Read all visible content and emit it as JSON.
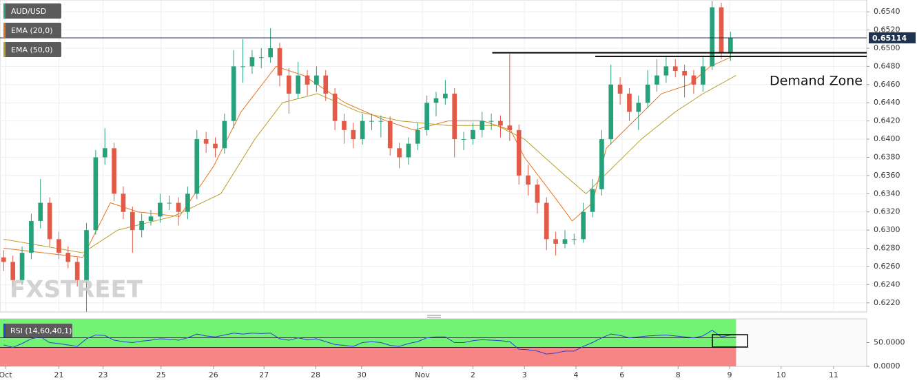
{
  "chart_data": [
    {
      "type": "candlestick",
      "title": "AUD/USD",
      "watermark": "FXSTREET",
      "up_color": "#26a17b",
      "down_color": "#e35a48",
      "xlim": [
        -0.4,
        93.8
      ],
      "ylim": [
        0.621,
        0.6553
      ],
      "grid": true,
      "yticks": [
        {
          "value": 0.622,
          "label": "0.6220"
        },
        {
          "value": 0.624,
          "label": "0.6240"
        },
        {
          "value": 0.626,
          "label": "0.6260"
        },
        {
          "value": 0.628,
          "label": "0.6280"
        },
        {
          "value": 0.63,
          "label": "0.6300"
        },
        {
          "value": 0.632,
          "label": "0.6320"
        },
        {
          "value": 0.634,
          "label": "0.6340"
        },
        {
          "value": 0.636,
          "label": "0.6360"
        },
        {
          "value": 0.638,
          "label": "0.6380"
        },
        {
          "value": 0.64,
          "label": "0.6400"
        },
        {
          "value": 0.642,
          "label": "0.6420"
        },
        {
          "value": 0.644,
          "label": "0.6440"
        },
        {
          "value": 0.646,
          "label": "0.6460"
        },
        {
          "value": 0.648,
          "label": "0.6480"
        },
        {
          "value": 0.65,
          "label": "0.6500"
        },
        {
          "value": 0.652,
          "label": "0.6520"
        },
        {
          "value": 0.654,
          "label": "0.6540"
        }
      ],
      "xticks": [
        {
          "value": 0.2,
          "label": "Oct"
        },
        {
          "value": 6,
          "label": "21"
        },
        {
          "value": 10.8,
          "label": "23"
        },
        {
          "value": 17.1,
          "label": "25"
        },
        {
          "value": 22.8,
          "label": "26"
        },
        {
          "value": 28.3,
          "label": "27"
        },
        {
          "value": 33.9,
          "label": "28"
        },
        {
          "value": 38.9,
          "label": "30"
        },
        {
          "value": 45.5,
          "label": "Nov"
        },
        {
          "value": 51,
          "label": "2"
        },
        {
          "value": 56.6,
          "label": "3"
        },
        {
          "value": 62.2,
          "label": "4"
        },
        {
          "value": 67.2,
          "label": "6"
        },
        {
          "value": 73.3,
          "label": "8"
        },
        {
          "value": 78.9,
          "label": "9"
        },
        {
          "value": 84.5,
          "label": "10"
        },
        {
          "value": 90.2,
          "label": "11"
        }
      ],
      "candles": [
        [
          0.627,
          0.6278,
          0.6255,
          0.6265
        ],
        [
          0.6265,
          0.6272,
          0.6238,
          0.6245
        ],
        [
          0.6245,
          0.6282,
          0.624,
          0.6275
        ],
        [
          0.6275,
          0.6318,
          0.6268,
          0.631
        ],
        [
          0.631,
          0.6356,
          0.6302,
          0.633
        ],
        [
          0.633,
          0.6336,
          0.6282,
          0.629
        ],
        [
          0.629,
          0.6298,
          0.6268,
          0.6275
        ],
        [
          0.6275,
          0.6282,
          0.6258,
          0.6265
        ],
        [
          0.6265,
          0.627,
          0.6238,
          0.6245
        ],
        [
          0.6245,
          0.6308,
          0.621,
          0.63
        ],
        [
          0.63,
          0.6388,
          0.6295,
          0.638
        ],
        [
          0.638,
          0.6412,
          0.6372,
          0.639
        ],
        [
          0.639,
          0.6396,
          0.6332,
          0.634
        ],
        [
          0.634,
          0.6348,
          0.6312,
          0.632
        ],
        [
          0.632,
          0.6326,
          0.6275,
          0.63
        ],
        [
          0.63,
          0.6318,
          0.6292,
          0.631
        ],
        [
          0.631,
          0.6322,
          0.6305,
          0.6315
        ],
        [
          0.6315,
          0.634,
          0.6308,
          0.633
        ],
        [
          0.633,
          0.6338,
          0.6322,
          0.633
        ],
        [
          0.633,
          0.6336,
          0.6305,
          0.632
        ],
        [
          0.632,
          0.6348,
          0.6312,
          0.634
        ],
        [
          0.634,
          0.641,
          0.6334,
          0.64
        ],
        [
          0.64,
          0.6408,
          0.6385,
          0.6395
        ],
        [
          0.6395,
          0.6402,
          0.638,
          0.639
        ],
        [
          0.639,
          0.6428,
          0.6384,
          0.642
        ],
        [
          0.642,
          0.6498,
          0.6412,
          0.648
        ],
        [
          0.648,
          0.651,
          0.6462,
          0.648
        ],
        [
          0.648,
          0.6498,
          0.6472,
          0.649
        ],
        [
          0.649,
          0.65,
          0.6478,
          0.649
        ],
        [
          0.649,
          0.6522,
          0.6484,
          0.65
        ],
        [
          0.65,
          0.6506,
          0.6458,
          0.647
        ],
        [
          0.647,
          0.6478,
          0.6428,
          0.645
        ],
        [
          0.645,
          0.6485,
          0.6444,
          0.647
        ],
        [
          0.647,
          0.6476,
          0.6448,
          0.646
        ],
        [
          0.646,
          0.648,
          0.6452,
          0.647
        ],
        [
          0.647,
          0.6476,
          0.6442,
          0.645
        ],
        [
          0.645,
          0.6456,
          0.641,
          0.642
        ],
        [
          0.642,
          0.6428,
          0.6395,
          0.641
        ],
        [
          0.641,
          0.6418,
          0.639,
          0.64
        ],
        [
          0.64,
          0.6428,
          0.6394,
          0.642
        ],
        [
          0.642,
          0.6428,
          0.641,
          0.642
        ],
        [
          0.642,
          0.6426,
          0.6402,
          0.642
        ],
        [
          0.642,
          0.6425,
          0.6382,
          0.639
        ],
        [
          0.639,
          0.6396,
          0.6368,
          0.638
        ],
        [
          0.638,
          0.6402,
          0.6372,
          0.6395
        ],
        [
          0.6395,
          0.6418,
          0.6388,
          0.641
        ],
        [
          0.641,
          0.6448,
          0.6404,
          0.644
        ],
        [
          0.644,
          0.6452,
          0.6425,
          0.6445
        ],
        [
          0.6445,
          0.6465,
          0.6438,
          0.645
        ],
        [
          0.645,
          0.6456,
          0.638,
          0.64
        ],
        [
          0.64,
          0.6408,
          0.6388,
          0.64
        ],
        [
          0.64,
          0.6418,
          0.6394,
          0.641
        ],
        [
          0.641,
          0.643,
          0.6402,
          0.642
        ],
        [
          0.642,
          0.6428,
          0.641,
          0.642
        ],
        [
          0.642,
          0.6426,
          0.6402,
          0.6415
        ],
        [
          0.6415,
          0.6494,
          0.6398,
          0.641
        ],
        [
          0.641,
          0.6416,
          0.635,
          0.636
        ],
        [
          0.636,
          0.6372,
          0.6338,
          0.635
        ],
        [
          0.635,
          0.6356,
          0.6318,
          0.633
        ],
        [
          0.633,
          0.6336,
          0.6278,
          0.629
        ],
        [
          0.629,
          0.6298,
          0.6272,
          0.6285
        ],
        [
          0.6285,
          0.63,
          0.628,
          0.629
        ],
        [
          0.629,
          0.6296,
          0.6284,
          0.629
        ],
        [
          0.629,
          0.633,
          0.6286,
          0.632
        ],
        [
          0.632,
          0.6356,
          0.6314,
          0.6345
        ],
        [
          0.6345,
          0.641,
          0.6338,
          0.64
        ],
        [
          0.64,
          0.6482,
          0.6394,
          0.646
        ],
        [
          0.646,
          0.6468,
          0.6438,
          0.645
        ],
        [
          0.645,
          0.6456,
          0.642,
          0.643
        ],
        [
          0.643,
          0.6448,
          0.641,
          0.644
        ],
        [
          0.644,
          0.6476,
          0.6434,
          0.646
        ],
        [
          0.646,
          0.6488,
          0.6452,
          0.647
        ],
        [
          0.647,
          0.649,
          0.6462,
          0.648
        ],
        [
          0.648,
          0.6488,
          0.6468,
          0.6475
        ],
        [
          0.6475,
          0.6482,
          0.6446,
          0.647
        ],
        [
          0.647,
          0.6476,
          0.645,
          0.646
        ],
        [
          0.646,
          0.649,
          0.6452,
          0.648
        ],
        [
          0.648,
          0.6552,
          0.6476,
          0.6545
        ],
        [
          0.6545,
          0.655,
          0.6488,
          0.6495
        ],
        [
          0.6495,
          0.6518,
          0.6486,
          0.6511
        ]
      ],
      "overlays": [
        {
          "name": "EMA (20,0)",
          "color": "#e8731e",
          "x": [
            0,
            8.6,
            11.6,
            14.6,
            19.1,
            22.8,
            25.8,
            29.6,
            32.6,
            37.1,
            41.6,
            44.6,
            48.3,
            52.1,
            55.1,
            56.6,
            59.6,
            61.8,
            64,
            65.5,
            68.5,
            71.5,
            74.5,
            76.8,
            79
          ],
          "values": [
            0.628,
            0.627,
            0.633,
            0.632,
            0.6315,
            0.637,
            0.643,
            0.648,
            0.647,
            0.644,
            0.642,
            0.641,
            0.642,
            0.642,
            0.641,
            0.638,
            0.634,
            0.631,
            0.633,
            0.639,
            0.642,
            0.645,
            0.646,
            0.648,
            0.649
          ]
        },
        {
          "name": "EMA (50,0)",
          "color": "#b8a02a",
          "x": [
            0,
            8.6,
            12.4,
            18.4,
            23.6,
            27.3,
            30.3,
            34.1,
            38.6,
            43.1,
            48.3,
            53.6,
            56.6,
            61,
            63.3,
            66.3,
            69.3,
            73,
            76,
            79.6
          ],
          "values": [
            0.629,
            0.6275,
            0.63,
            0.6315,
            0.634,
            0.64,
            0.644,
            0.645,
            0.643,
            0.642,
            0.6415,
            0.6415,
            0.64,
            0.636,
            0.634,
            0.637,
            0.64,
            0.643,
            0.645,
            0.647
          ]
        }
      ],
      "last_price": 0.65114,
      "price_line_color": "#1f3350",
      "levels": [
        {
          "value": 0.6495,
          "x_start": 53.1
        },
        {
          "value": 0.6491,
          "x_start": 64.3
        }
      ],
      "annotation": "Demand Zone"
    },
    {
      "type": "rsi",
      "name": "RSI (14,60,40,1)",
      "color": "#2a3fd4",
      "xlim": [
        -0.4,
        93.8
      ],
      "ylim": [
        0,
        100
      ],
      "upper": 60,
      "lower": 40,
      "upper_color": "#74f274",
      "lower_color": "#f88585",
      "yticks": [
        {
          "value": 0,
          "label": "0.0000"
        },
        {
          "value": 50,
          "label": "50.0000"
        }
      ],
      "values": [
        45,
        40,
        48,
        58,
        62,
        50,
        48,
        45,
        42,
        58,
        66,
        65,
        55,
        52,
        50,
        53,
        55,
        58,
        57,
        55,
        60,
        68,
        64,
        62,
        66,
        70,
        68,
        70,
        69,
        70,
        58,
        55,
        60,
        56,
        58,
        52,
        46,
        44,
        42,
        50,
        52,
        50,
        44,
        42,
        48,
        52,
        60,
        62,
        62,
        50,
        50,
        54,
        56,
        55,
        54,
        52,
        36,
        35,
        32,
        26,
        28,
        32,
        32,
        42,
        50,
        60,
        68,
        65,
        60,
        62,
        64,
        65,
        66,
        64,
        62,
        60,
        64,
        76,
        62,
        66
      ]
    }
  ]
}
